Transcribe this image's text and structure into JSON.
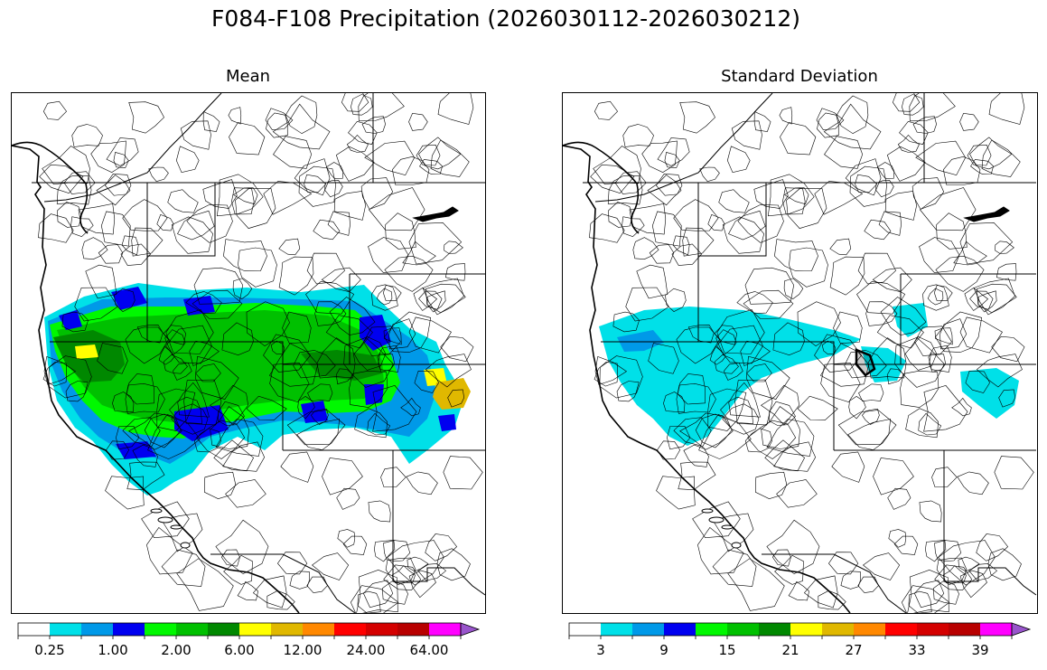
{
  "figure": {
    "title": "F084-F108 Precipitation (2026030112-2026030212)"
  },
  "panels": [
    {
      "title": "Mean",
      "colorbar_ticks": [
        "0.25",
        "1.00",
        "2.00",
        "6.00",
        "12.00",
        "24.00",
        "64.00"
      ]
    },
    {
      "title": "Standard Deviation",
      "colorbar_ticks": [
        "3",
        "9",
        "15",
        "21",
        "27",
        "33",
        "39"
      ]
    }
  ],
  "colors": {
    "scale": [
      "#ffffff",
      "#00e0e8",
      "#0099e8",
      "#0000f0",
      "#00f800",
      "#00c000",
      "#008800",
      "#ffff00",
      "#e0b800",
      "#ff8800",
      "#ff0000",
      "#d40000",
      "#b80000",
      "#ff00ff",
      "#9955cc"
    ],
    "boundary": "#000000"
  },
  "legend": {
    "extend": "max"
  }
}
